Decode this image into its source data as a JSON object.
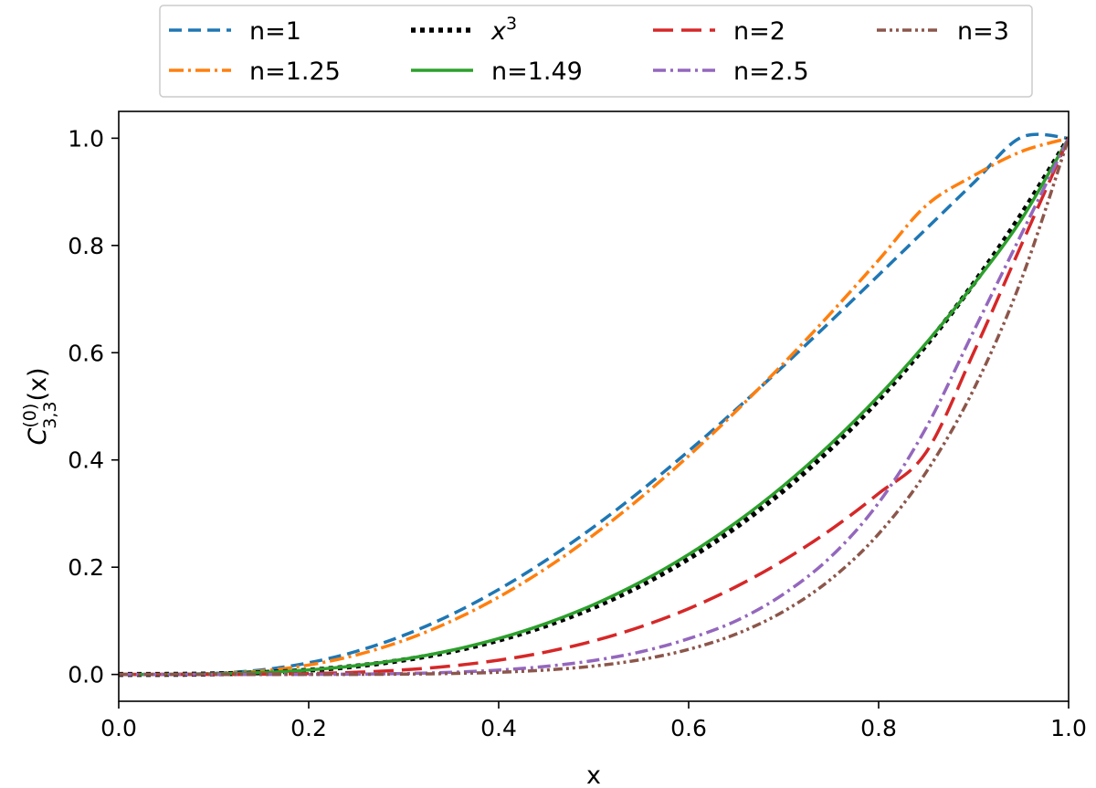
{
  "chart_data": {
    "type": "line",
    "title": "",
    "xlabel": "x",
    "ylabel": {
      "base": "C",
      "superscript": "(0)",
      "subscript": "3,3",
      "suffix": "(x)"
    },
    "xlim": [
      0.0,
      1.0
    ],
    "ylim": [
      -0.05,
      1.05
    ],
    "x_ticks": [
      0.0,
      0.2,
      0.4,
      0.6,
      0.8,
      1.0
    ],
    "x_tick_labels": [
      "0.0",
      "0.2",
      "0.4",
      "0.6",
      "0.8",
      "1.0"
    ],
    "y_ticks": [
      0.0,
      0.2,
      0.4,
      0.6,
      0.8,
      1.0
    ],
    "y_tick_labels": [
      "0.0",
      "0.2",
      "0.4",
      "0.6",
      "0.8",
      "1.0"
    ],
    "grid": false,
    "legend_location": "top-center, outside plot",
    "x": [
      0.0,
      0.05,
      0.1,
      0.15,
      0.2,
      0.25,
      0.3,
      0.35,
      0.4,
      0.45,
      0.5,
      0.55,
      0.6,
      0.65,
      0.7,
      0.75,
      0.8,
      0.85,
      0.9,
      0.95,
      1.0
    ],
    "series": [
      {
        "name": "n=1",
        "legend_main": "n=1",
        "legend_sup": "",
        "color": "#1f77b4",
        "dash": "14 7",
        "width": 3.5,
        "values": [
          0.0,
          0.0001,
          0.0019,
          0.0084,
          0.0217,
          0.043,
          0.0729,
          0.1115,
          0.1584,
          0.2131,
          0.275,
          0.3431,
          0.4166,
          0.4944,
          0.5756,
          0.6594,
          0.7448,
          0.8308,
          0.9167,
          1.0014,
          1.0
        ]
      },
      {
        "name": "n=1.25",
        "legend_main": "n=1.25",
        "legend_sup": "",
        "color": "#ff7f0e",
        "dash": "16 5 3 5",
        "width": 3.5,
        "values": [
          0.0,
          0.0001,
          0.0014,
          0.0065,
          0.0176,
          0.0362,
          0.0633,
          0.0993,
          0.1443,
          0.198,
          0.2603,
          0.3303,
          0.4075,
          0.4911,
          0.5803,
          0.6744,
          0.7728,
          0.8744,
          0.93,
          0.975,
          1.0
        ]
      },
      {
        "name": "x^3",
        "legend_main": "x",
        "legend_sup": "3",
        "color": "#000000",
        "dash": "5 5",
        "width": 5.5,
        "values": [
          0.0,
          0.000125,
          0.001,
          0.003375,
          0.008,
          0.015625,
          0.027,
          0.042875,
          0.064,
          0.091125,
          0.125,
          0.166375,
          0.216,
          0.274625,
          0.343,
          0.421875,
          0.512,
          0.614125,
          0.729,
          0.857375,
          1.0
        ]
      },
      {
        "name": "n=1.49",
        "legend_main": "n=1.49",
        "legend_sup": "",
        "color": "#2ca02c",
        "dash": "",
        "width": 3.5,
        "values": [
          0.0,
          0.00013,
          0.00105,
          0.00355,
          0.0084,
          0.0164,
          0.0283,
          0.0449,
          0.0669,
          0.0951,
          0.1302,
          0.1729,
          0.2238,
          0.2834,
          0.3522,
          0.4306,
          0.519,
          0.6178,
          0.7273,
          0.8478,
          1.0
        ]
      },
      {
        "name": "n=2",
        "legend_main": "n=2",
        "legend_sup": "",
        "color": "#d62728",
        "dash": "22 9",
        "width": 3.5,
        "values": [
          0.0,
          0.0,
          0.0001,
          0.0005,
          0.0016,
          0.004,
          0.0085,
          0.0157,
          0.0266,
          0.0419,
          0.0625,
          0.0892,
          0.1227,
          0.1637,
          0.2128,
          0.2705,
          0.3375,
          0.4142,
          0.6,
          0.8,
          1.0
        ]
      },
      {
        "name": "n=2.5",
        "legend_main": "n=2.5",
        "legend_sup": "",
        "color": "#9467bd",
        "dash": "14 5 3 5",
        "width": 3.5,
        "values": [
          0.0,
          0.0,
          0.0,
          0.0,
          0.0001,
          0.0006,
          0.0017,
          0.004,
          0.0082,
          0.0151,
          0.026,
          0.0424,
          0.0667,
          0.1,
          0.15,
          0.22,
          0.32,
          0.46,
          0.64,
          0.82,
          1.0
        ]
      },
      {
        "name": "n=3",
        "legend_main": "n=3",
        "legend_sup": "",
        "color": "#8c564b",
        "dash": "10 4 3 4 3 4",
        "width": 3.5,
        "values": [
          0.0,
          0.0,
          0.0,
          0.0,
          0.0,
          0.0001,
          0.0006,
          0.0018,
          0.0041,
          0.0083,
          0.0156,
          0.0277,
          0.0467,
          0.0754,
          0.1176,
          0.178,
          0.2621,
          0.3771,
          0.5314,
          0.7351,
          1.0
        ]
      }
    ]
  }
}
